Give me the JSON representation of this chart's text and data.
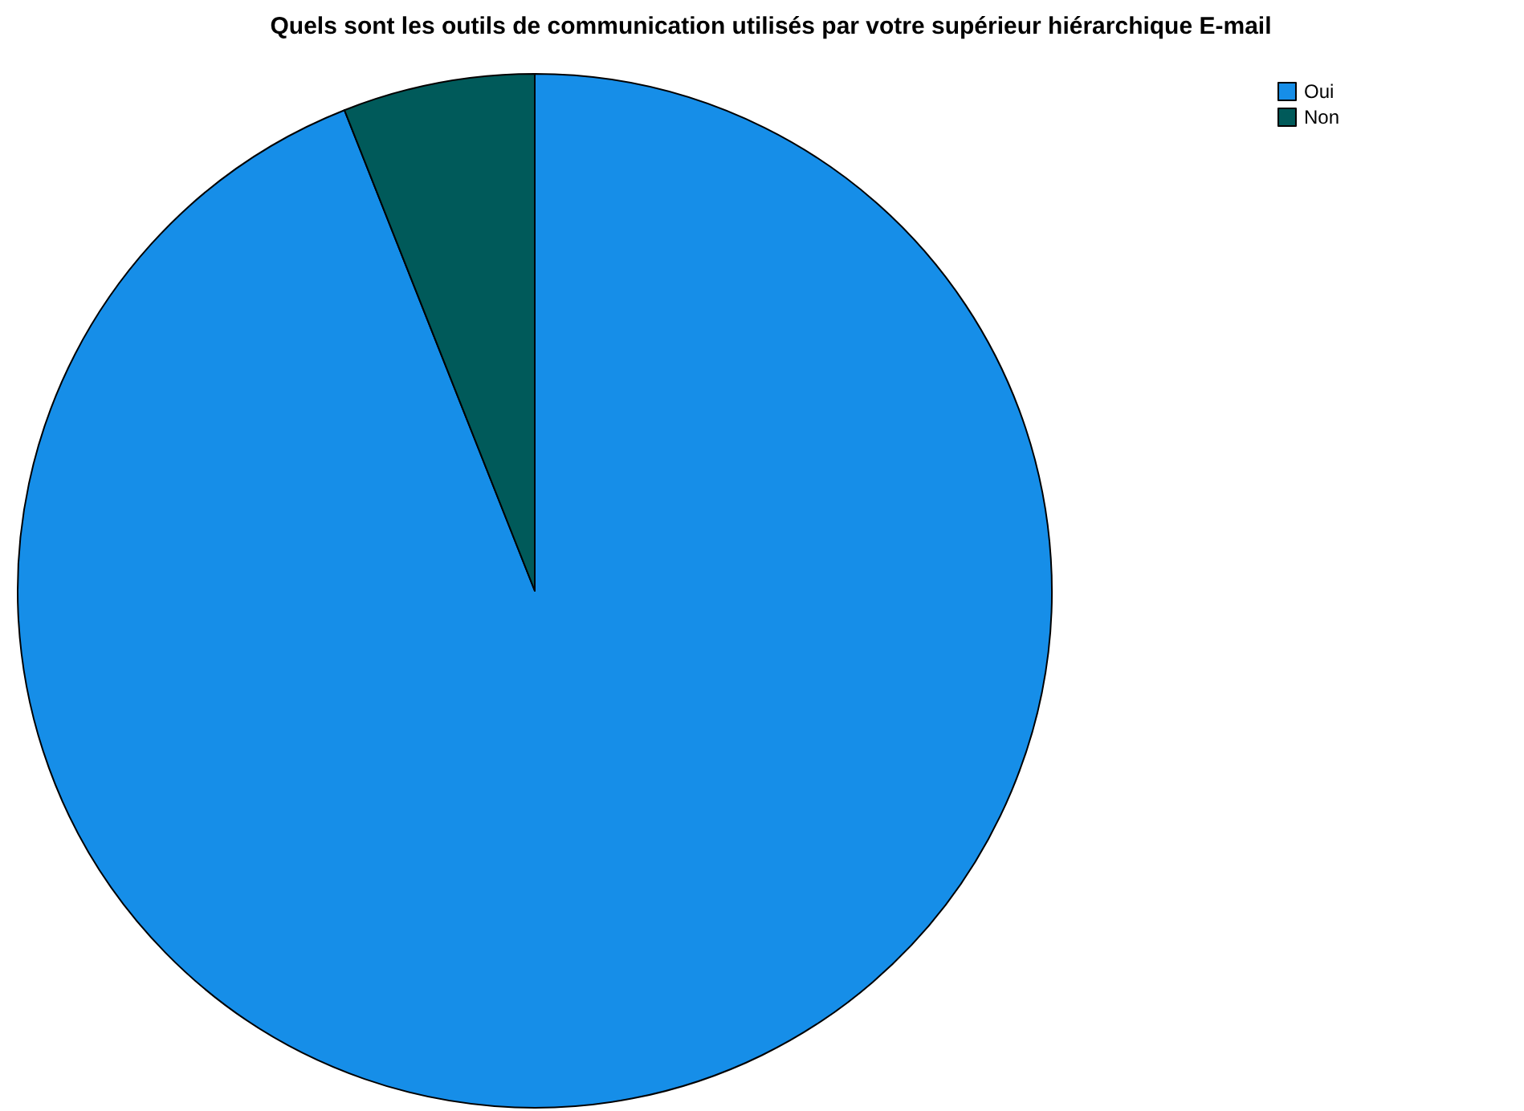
{
  "chart_data": {
    "type": "pie",
    "title": "Quels sont les outils de communication utilisés par votre supérieur hiérarchique E-mail",
    "categories": [
      "Oui",
      "Non"
    ],
    "values": [
      94,
      6
    ],
    "colors": [
      "#168ee8",
      "#005a5a"
    ],
    "legend": "top right"
  }
}
